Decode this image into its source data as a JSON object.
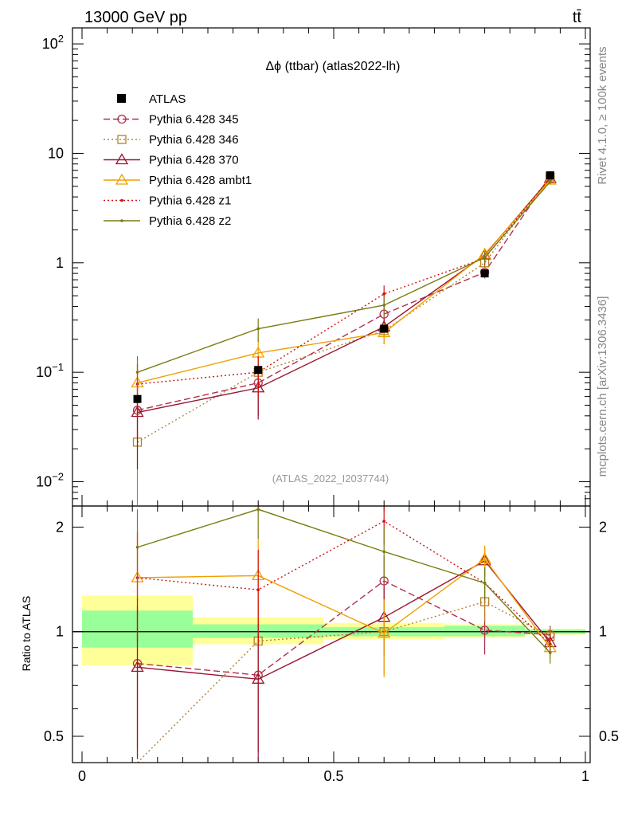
{
  "header": {
    "energy_label": "13000 GeV pp",
    "process_label": "tt̄",
    "plot_title": "Δϕ (ttbar) (atlas2022-lh)",
    "analysis_label": "(ATLAS_2022_I2037744)",
    "side_label_top": "Rivet 4.1.0, ≥ 100k events",
    "side_label_bottom": "mcplots.cern.ch [arXiv:1306.3436]"
  },
  "chart_data": {
    "type": "line",
    "title": "Δϕ (ttbar) (atlas2022-lh)",
    "xlabel": "",
    "ylabel": "",
    "ratio_ylabel": "Ratio to ATLAS",
    "xlim": [
      0,
      1
    ],
    "ylim": [
      0.006,
      140
    ],
    "yscale": "log",
    "ratio_ylim": [
      0.42,
      2.3
    ],
    "ratio_yscale": "log",
    "legend_position": "top-left",
    "main_tick_labels": [
      {
        "value": 100,
        "base": "10",
        "exp": "2"
      },
      {
        "value": 10,
        "base": "10",
        "exp": ""
      },
      {
        "value": 1,
        "base": "1",
        "exp": ""
      },
      {
        "value": 0.1,
        "base": "10",
        "exp": "−1"
      },
      {
        "value": 0.01,
        "base": "10",
        "exp": "−2"
      }
    ],
    "ratio_tick_labels": [
      {
        "value": 2,
        "label": "2"
      },
      {
        "value": 1,
        "label": "1"
      },
      {
        "value": 0.5,
        "label": "0.5"
      }
    ],
    "x_tick_labels": [
      {
        "value": 0,
        "label": "0"
      },
      {
        "value": 0.5,
        "label": "0.5"
      },
      {
        "value": 1,
        "label": "1"
      }
    ],
    "bins": [
      {
        "lo": 0.0,
        "hi": 0.22
      },
      {
        "lo": 0.22,
        "hi": 0.48
      },
      {
        "lo": 0.48,
        "hi": 0.72
      },
      {
        "lo": 0.72,
        "hi": 0.88
      },
      {
        "lo": 0.88,
        "hi": 1.0
      }
    ],
    "x": [
      0.11,
      0.35,
      0.6,
      0.8,
      0.93
    ],
    "data": {
      "name": "ATLAS",
      "values": [
        0.057,
        0.105,
        0.25,
        0.8,
        6.3
      ],
      "band_inner": [
        [
          0.9,
          1.15
        ],
        [
          0.96,
          1.05
        ],
        [
          0.97,
          1.03
        ],
        [
          0.97,
          1.04
        ],
        [
          0.985,
          1.015
        ]
      ],
      "band_outer": [
        [
          0.8,
          1.27
        ],
        [
          0.92,
          1.1
        ],
        [
          0.95,
          1.06
        ],
        [
          0.96,
          1.05
        ],
        [
          0.98,
          1.02
        ]
      ]
    },
    "series": [
      {
        "name": "Pythia 6.428 345",
        "color": "#b03050",
        "dash": "8,4",
        "marker": "circle",
        "values": [
          0.045,
          0.08,
          0.34,
          0.82,
          6.2
        ],
        "errors": [
          0.02,
          0.04,
          0.07,
          0.1,
          0.3
        ],
        "ratio": [
          0.81,
          0.75,
          1.4,
          1.01,
          0.98
        ],
        "ratio_err": [
          0.35,
          0.3,
          0.25,
          0.15,
          0.06
        ]
      },
      {
        "name": "Pythia 6.428 346",
        "color": "#b5802a",
        "dash": "2,3",
        "marker": "square",
        "values": [
          0.023,
          0.1,
          0.24,
          1.0,
          6.1
        ],
        "errors": [
          0.02,
          0.04,
          0.06,
          0.12,
          0.3
        ],
        "ratio": [
          0.4,
          0.94,
          1.0,
          1.22,
          0.97
        ],
        "ratio_err": [
          0.4,
          0.3,
          0.25,
          0.15,
          0.06
        ]
      },
      {
        "name": "Pythia 6.428 370",
        "color": "#9a1530",
        "dash": "",
        "marker": "triangle",
        "values": [
          0.043,
          0.072,
          0.26,
          1.18,
          5.9
        ],
        "errors": [
          0.03,
          0.035,
          0.05,
          0.15,
          0.3
        ],
        "ratio": [
          0.79,
          0.73,
          1.1,
          1.6,
          0.93
        ],
        "ratio_err": [
          0.4,
          0.35,
          0.25,
          0.15,
          0.06
        ]
      },
      {
        "name": "Pythia 6.428 ambt1",
        "color": "#f0a000",
        "dash": "",
        "marker": "triangle",
        "values": [
          0.08,
          0.15,
          0.23,
          1.2,
          5.7
        ],
        "errors": [
          0.04,
          0.05,
          0.05,
          0.15,
          0.3
        ],
        "ratio": [
          1.43,
          1.45,
          0.99,
          1.62,
          0.9
        ],
        "ratio_err": [
          0.5,
          0.4,
          0.25,
          0.15,
          0.06
        ]
      },
      {
        "name": "Pythia 6.428 z1",
        "color": "#d01010",
        "dash": "2,3",
        "marker": "dot",
        "values": [
          0.078,
          0.1,
          0.52,
          1.1,
          6.0
        ],
        "errors": [
          0.04,
          0.04,
          0.1,
          0.15,
          0.3
        ],
        "ratio": [
          1.43,
          1.32,
          2.08,
          1.38,
          0.92
        ],
        "ratio_err": [
          0.5,
          0.4,
          0.3,
          0.15,
          0.06
        ]
      },
      {
        "name": "Pythia 6.428 z2",
        "color": "#7a7a10",
        "dash": "",
        "marker": "dot",
        "values": [
          0.1,
          0.25,
          0.41,
          1.12,
          5.5
        ],
        "errors": [
          0.04,
          0.06,
          0.08,
          0.15,
          0.3
        ],
        "ratio": [
          1.75,
          2.25,
          1.7,
          1.38,
          0.87
        ],
        "ratio_err": [
          0.5,
          0.4,
          0.3,
          0.15,
          0.06
        ]
      }
    ]
  }
}
